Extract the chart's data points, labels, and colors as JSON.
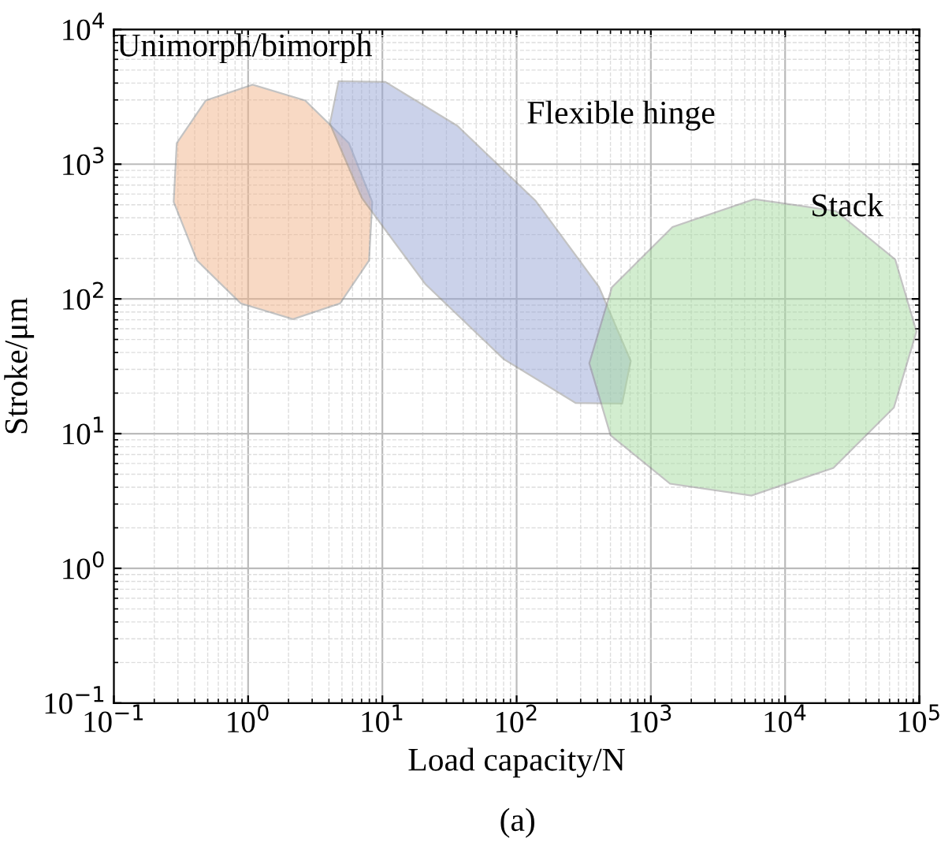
{
  "chart_data": {
    "type": "area",
    "xlabel": "Load capacity/N",
    "ylabel": "Stroke/μm",
    "log": "xy",
    "grid": true,
    "xlim": [
      0.1,
      100000
    ],
    "ylim": [
      0.1,
      10000
    ],
    "xticks": [
      {
        "value": 0.1,
        "label": "10$^{−1}$"
      },
      {
        "value": 1,
        "label": "10$^{0}$"
      },
      {
        "value": 10,
        "label": "10$^{1}$"
      },
      {
        "value": 100,
        "label": "10$^{2}$"
      },
      {
        "value": 1000,
        "label": "10$^{3}$"
      },
      {
        "value": 10000,
        "label": "10$^{4}$"
      },
      {
        "value": 100000,
        "label": "10$^{5}$"
      }
    ],
    "yticks": [
      {
        "value": 0.1,
        "label": "10$^{−1}$"
      },
      {
        "value": 1,
        "label": "10$^{0}$"
      },
      {
        "value": 10,
        "label": "10$^{1}$"
      },
      {
        "value": 100,
        "label": "10$^{2}$"
      },
      {
        "value": 1000,
        "label": "10$^{3}$"
      },
      {
        "value": 10000,
        "label": "10$^{4}$"
      }
    ],
    "series": [
      {
        "color": "#f2b48a",
        "x": [
          8.41,
          5.64,
          2.66,
          1.08,
          0.484,
          0.294,
          0.279,
          0.416,
          0.881,
          2.16,
          4.84,
          7.96
        ],
        "values": [
          525,
          1430,
          2970,
          3890,
          2970,
          1430,
          525,
          193,
          92.7,
          70.8,
          92.7,
          193
        ]
      },
      {
        "color": "#98a6d6",
        "x": [
          611,
          708,
          410,
          138,
          36.1,
          10.5,
          4.72,
          4.07,
          7.03,
          20.9,
          80.0,
          275
        ],
        "values": [
          16.7,
          34.6,
          123,
          537,
          1930,
          4080,
          4130,
          2000,
          562,
          129,
          35.8,
          16.9
        ]
      },
      {
        "color": "#a6dca0",
        "x": [
          66100,
          95100,
          64600,
          22900,
          5620,
          1390,
          501,
          348,
          513,
          1450,
          5890,
          23900
        ],
        "values": [
          196,
          57.3,
          15.6,
          5.57,
          3.47,
          4.25,
          9.72,
          33.3,
          122,
          342,
          550,
          449
        ]
      }
    ],
    "annotations": [
      "Unimorph/bimorph",
      "Flexible hinge",
      "Stack",
      "(a)"
    ]
  }
}
